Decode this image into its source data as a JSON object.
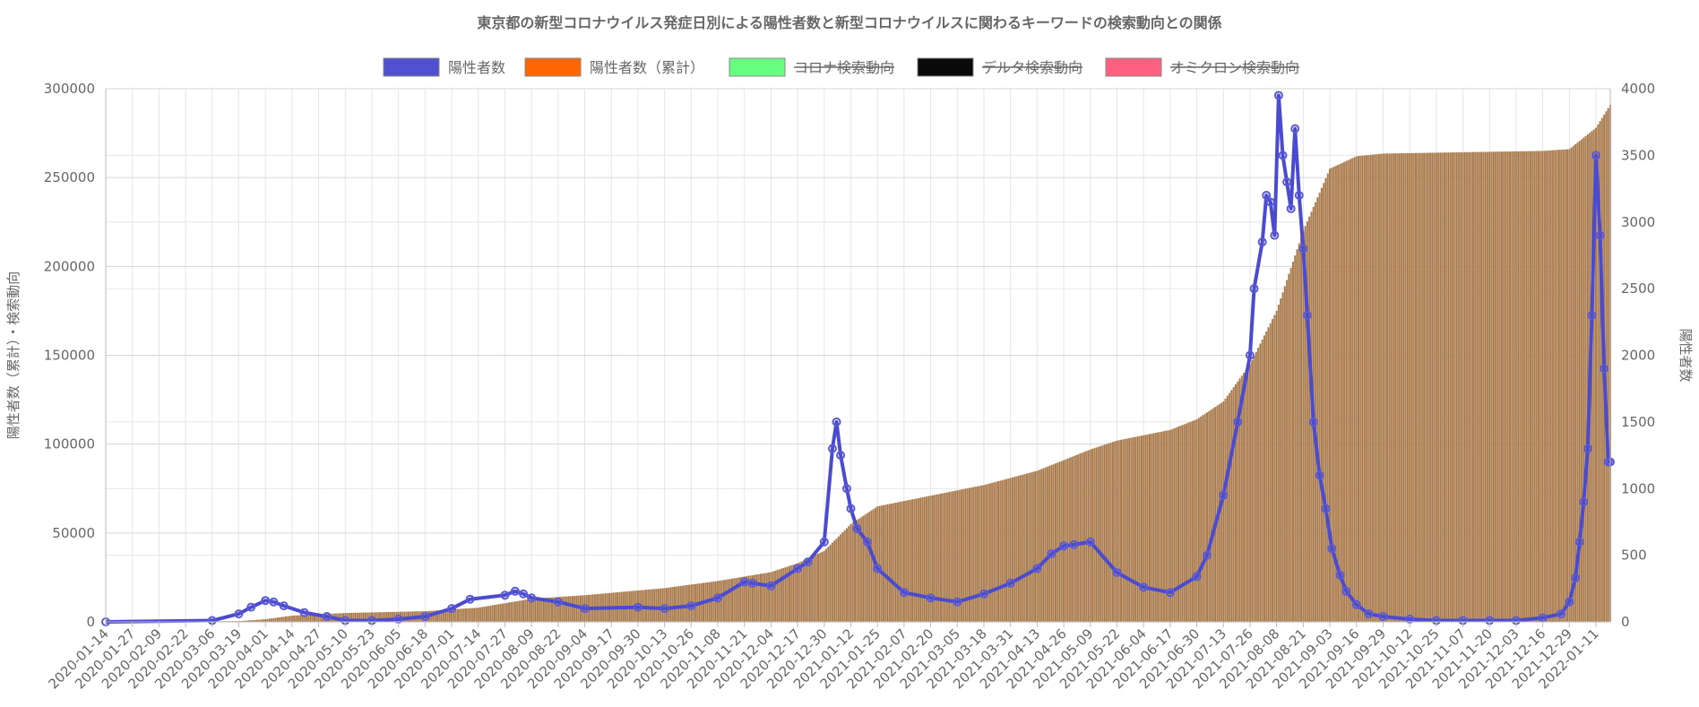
{
  "chart_data": {
    "type": "bar+line",
    "title": "東京都の新型コロナウイルス発症日別による陽性者数と新型コロナウイルスに関わるキーワードの検索動向との関係",
    "legend": [
      {
        "label": "陽性者数",
        "color": "#5050d0",
        "hidden": false
      },
      {
        "label": "陽性者数（累計）",
        "color": "#ff6600",
        "hidden": false
      },
      {
        "label": "コロナ検索動向",
        "color": "#66ff80",
        "hidden": true
      },
      {
        "label": "デルタ検索動向",
        "color": "#0a0a0a",
        "hidden": true
      },
      {
        "label": "オミクロン検索動向",
        "color": "#ff6080",
        "hidden": true
      }
    ],
    "legend_position": "top",
    "y_left": {
      "label": "陽性者数（累計）・検索動向",
      "min": 0,
      "max": 300000,
      "ticks": [
        0,
        50000,
        100000,
        150000,
        200000,
        250000,
        300000
      ]
    },
    "y_right": {
      "label": "陽性者数",
      "min": 0,
      "max": 4000,
      "ticks": [
        0,
        500,
        1000,
        1500,
        2000,
        2500,
        3000,
        3500,
        4000
      ]
    },
    "x_range": [
      "2020-01-14",
      "2022-01-18"
    ],
    "x_tick_labels": [
      "2020-01-14",
      "2020-01-27",
      "2020-02-09",
      "2020-02-22",
      "2020-03-06",
      "2020-03-19",
      "2020-04-01",
      "2020-04-14",
      "2020-04-27",
      "2020-05-10",
      "2020-05-23",
      "2020-06-05",
      "2020-06-18",
      "2020-07-01",
      "2020-07-14",
      "2020-07-27",
      "2020-08-09",
      "2020-08-22",
      "2020-09-04",
      "2020-09-17",
      "2020-09-30",
      "2020-10-13",
      "2020-10-26",
      "2020-11-08",
      "2020-11-21",
      "2020-12-04",
      "2020-12-17",
      "2020-12-30",
      "2021-01-12",
      "2021-01-25",
      "2021-02-07",
      "2021-02-20",
      "2021-03-05",
      "2021-03-18",
      "2021-03-31",
      "2021-04-13",
      "2021-04-26",
      "2021-05-09",
      "2021-05-22",
      "2021-06-04",
      "2021-06-17",
      "2021-06-30",
      "2021-07-13",
      "2021-07-26",
      "2021-08-08",
      "2021-08-21",
      "2021-09-03",
      "2021-09-16",
      "2021-09-29",
      "2021-10-12",
      "2021-10-25",
      "2021-11-07",
      "2021-11-20",
      "2021-12-03",
      "2021-12-16",
      "2021-12-29",
      "2022-01-11"
    ],
    "series": [
      {
        "name": "陽性者数（累計）",
        "type": "bar",
        "axis": "left",
        "x": [
          "2020-01-14",
          "2020-03-19",
          "2020-04-01",
          "2020-04-14",
          "2020-05-10",
          "2020-06-18",
          "2020-07-14",
          "2020-08-09",
          "2020-09-04",
          "2020-10-13",
          "2020-11-08",
          "2020-12-04",
          "2020-12-17",
          "2020-12-30",
          "2021-01-12",
          "2021-01-25",
          "2021-02-20",
          "2021-03-18",
          "2021-04-13",
          "2021-04-26",
          "2021-05-09",
          "2021-05-22",
          "2021-06-17",
          "2021-06-30",
          "2021-07-13",
          "2021-07-26",
          "2021-08-08",
          "2021-08-21",
          "2021-09-03",
          "2021-09-16",
          "2021-09-29",
          "2021-10-25",
          "2021-11-20",
          "2021-12-16",
          "2021-12-29",
          "2022-01-11",
          "2022-01-18"
        ],
        "values": [
          0,
          400,
          1500,
          3500,
          5000,
          6000,
          8000,
          13000,
          15000,
          19000,
          23000,
          28000,
          33000,
          40000,
          55000,
          65000,
          71000,
          77000,
          85000,
          91000,
          97000,
          102000,
          108000,
          114000,
          124000,
          145000,
          175000,
          220000,
          255000,
          262000,
          263500,
          264000,
          264500,
          265000,
          266000,
          278000,
          291000
        ]
      },
      {
        "name": "陽性者数",
        "type": "line",
        "axis": "right",
        "x": [
          "2020-01-14",
          "2020-03-06",
          "2020-03-19",
          "2020-03-25",
          "2020-04-01",
          "2020-04-05",
          "2020-04-10",
          "2020-04-20",
          "2020-05-01",
          "2020-05-10",
          "2020-05-23",
          "2020-06-05",
          "2020-06-18",
          "2020-07-01",
          "2020-07-10",
          "2020-07-27",
          "2020-08-01",
          "2020-08-05",
          "2020-08-09",
          "2020-08-22",
          "2020-09-04",
          "2020-09-30",
          "2020-10-13",
          "2020-10-26",
          "2020-11-08",
          "2020-11-21",
          "2020-11-25",
          "2020-12-04",
          "2020-12-17",
          "2020-12-22",
          "2020-12-30",
          "2021-01-03",
          "2021-01-05",
          "2021-01-07",
          "2021-01-10",
          "2021-01-12",
          "2021-01-15",
          "2021-01-20",
          "2021-01-25",
          "2021-02-07",
          "2021-02-20",
          "2021-03-05",
          "2021-03-18",
          "2021-03-31",
          "2021-04-13",
          "2021-04-20",
          "2021-04-26",
          "2021-05-01",
          "2021-05-09",
          "2021-05-22",
          "2021-06-04",
          "2021-06-17",
          "2021-06-30",
          "2021-07-05",
          "2021-07-13",
          "2021-07-20",
          "2021-07-26",
          "2021-07-28",
          "2021-08-01",
          "2021-08-03",
          "2021-08-05",
          "2021-08-07",
          "2021-08-09",
          "2021-08-11",
          "2021-08-13",
          "2021-08-15",
          "2021-08-17",
          "2021-08-19",
          "2021-08-21",
          "2021-08-23",
          "2021-08-26",
          "2021-08-29",
          "2021-09-01",
          "2021-09-04",
          "2021-09-08",
          "2021-09-11",
          "2021-09-16",
          "2021-09-22",
          "2021-09-29",
          "2021-10-12",
          "2021-10-25",
          "2021-11-07",
          "2021-11-20",
          "2021-12-03",
          "2021-12-16",
          "2021-12-25",
          "2021-12-29",
          "2022-01-01",
          "2022-01-03",
          "2022-01-05",
          "2022-01-07",
          "2022-01-09",
          "2022-01-11",
          "2022-01-13",
          "2022-01-15",
          "2022-01-17",
          "2022-01-18"
        ],
        "values": [
          0,
          10,
          60,
          110,
          160,
          150,
          120,
          70,
          40,
          10,
          10,
          20,
          40,
          100,
          170,
          200,
          230,
          210,
          180,
          150,
          100,
          110,
          100,
          120,
          180,
          300,
          290,
          270,
          400,
          450,
          600,
          1300,
          1500,
          1250,
          1000,
          850,
          700,
          600,
          400,
          220,
          180,
          150,
          210,
          290,
          400,
          510,
          570,
          580,
          600,
          370,
          260,
          220,
          340,
          500,
          950,
          1500,
          2000,
          2500,
          2850,
          3200,
          3150,
          2900,
          3950,
          3500,
          3300,
          3100,
          3700,
          3200,
          2800,
          2300,
          1500,
          1100,
          850,
          550,
          350,
          230,
          130,
          60,
          40,
          20,
          10,
          10,
          10,
          10,
          30,
          60,
          150,
          330,
          600,
          900,
          1300,
          2300,
          3500,
          2900,
          1900,
          1200,
          1200
        ]
      },
      {
        "name": "コロナ検索動向",
        "hidden": true,
        "values": []
      },
      {
        "name": "デルタ検索動向",
        "hidden": true,
        "values": []
      },
      {
        "name": "オミクロン検索動向",
        "hidden": true,
        "values": []
      }
    ]
  }
}
